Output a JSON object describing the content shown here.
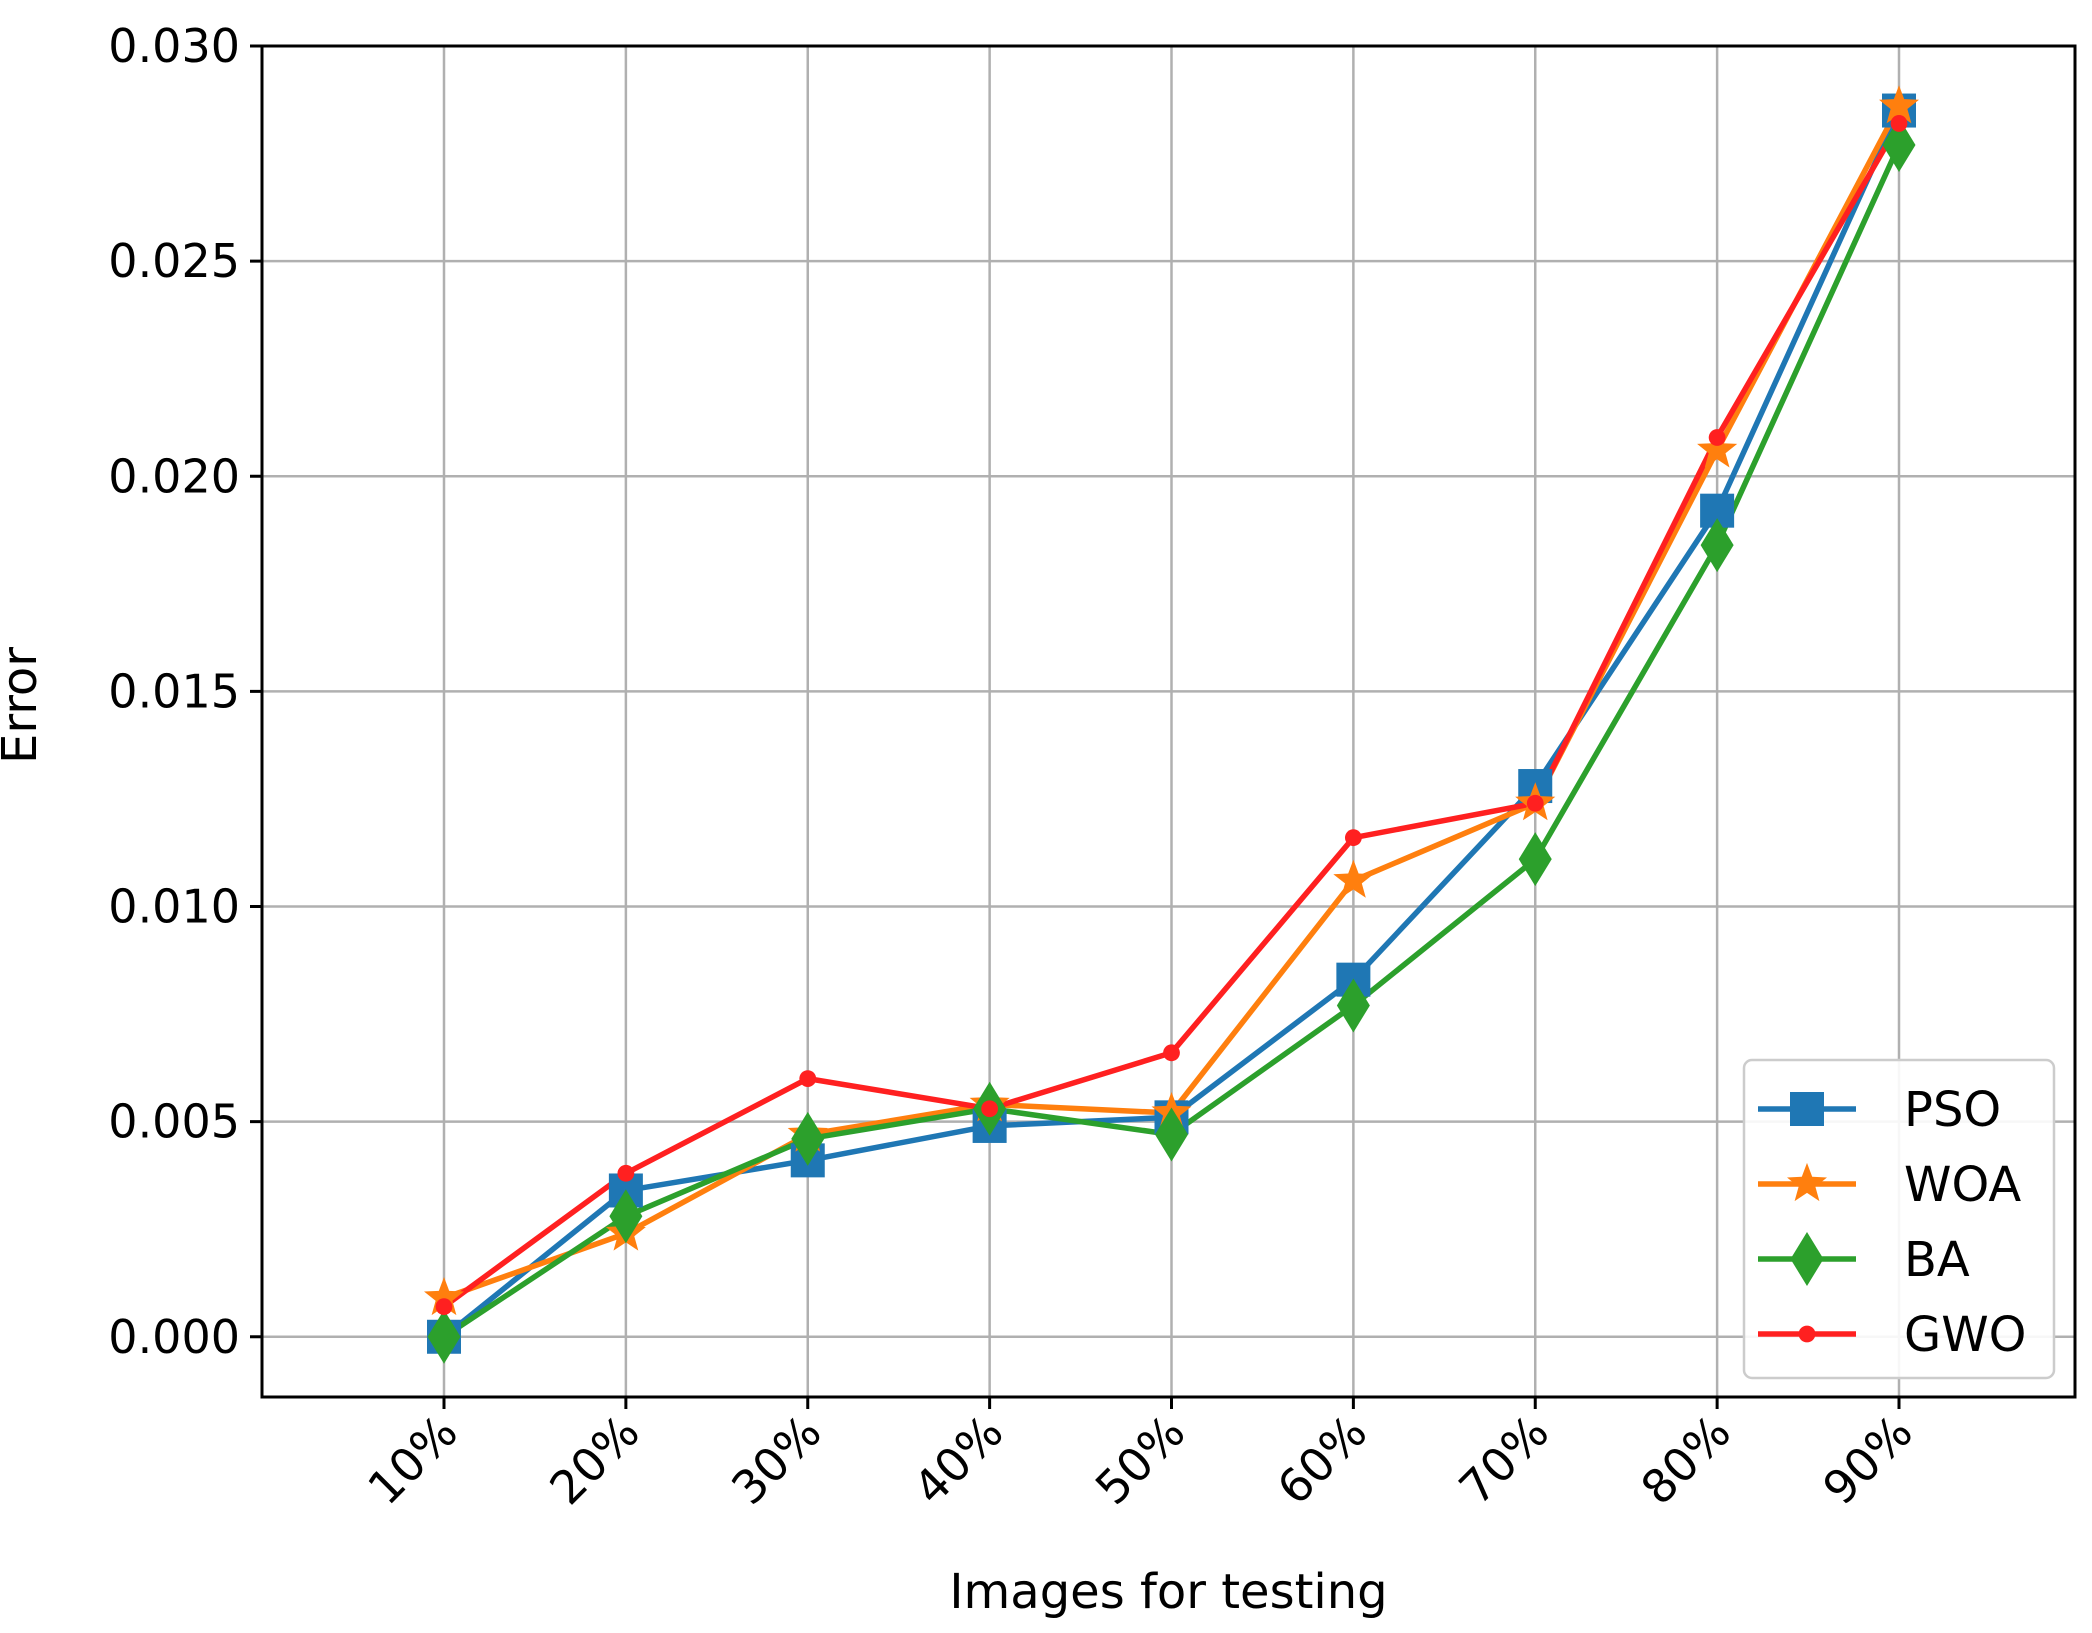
{
  "chart_data": {
    "type": "line",
    "title": "",
    "xlabel": "Images for testing",
    "ylabel": "Error",
    "categories": [
      "10%",
      "20%",
      "30%",
      "40%",
      "50%",
      "60%",
      "70%",
      "80%",
      "90%"
    ],
    "ylim": [
      -0.0014,
      0.03
    ],
    "yticks": [
      "0.000",
      "0.005",
      "0.010",
      "0.015",
      "0.020",
      "0.025",
      "0.030"
    ],
    "grid": true,
    "legend_position": "lower-right",
    "series": [
      {
        "name": "PSO",
        "color": "#1f77b4",
        "marker": "square",
        "values": [
          0.0,
          0.0034,
          0.0041,
          0.0049,
          0.0051,
          0.0083,
          0.0128,
          0.0192,
          0.0285
        ]
      },
      {
        "name": "WOA",
        "color": "#ff7f0e",
        "marker": "star",
        "values": [
          0.0009,
          0.0024,
          0.0047,
          0.0054,
          0.0052,
          0.0106,
          0.0124,
          0.0206,
          0.0286
        ]
      },
      {
        "name": "BA",
        "color": "#2ca02c",
        "marker": "diamond",
        "values": [
          0.0,
          0.0028,
          0.0046,
          0.0053,
          0.0047,
          0.0077,
          0.0111,
          0.0184,
          0.0277
        ]
      },
      {
        "name": "GWO",
        "color": "#ff2020",
        "marker": "circle",
        "values": [
          0.0007,
          0.0038,
          0.006,
          0.0053,
          0.0066,
          0.0116,
          0.0124,
          0.0209,
          0.0282
        ]
      }
    ]
  }
}
